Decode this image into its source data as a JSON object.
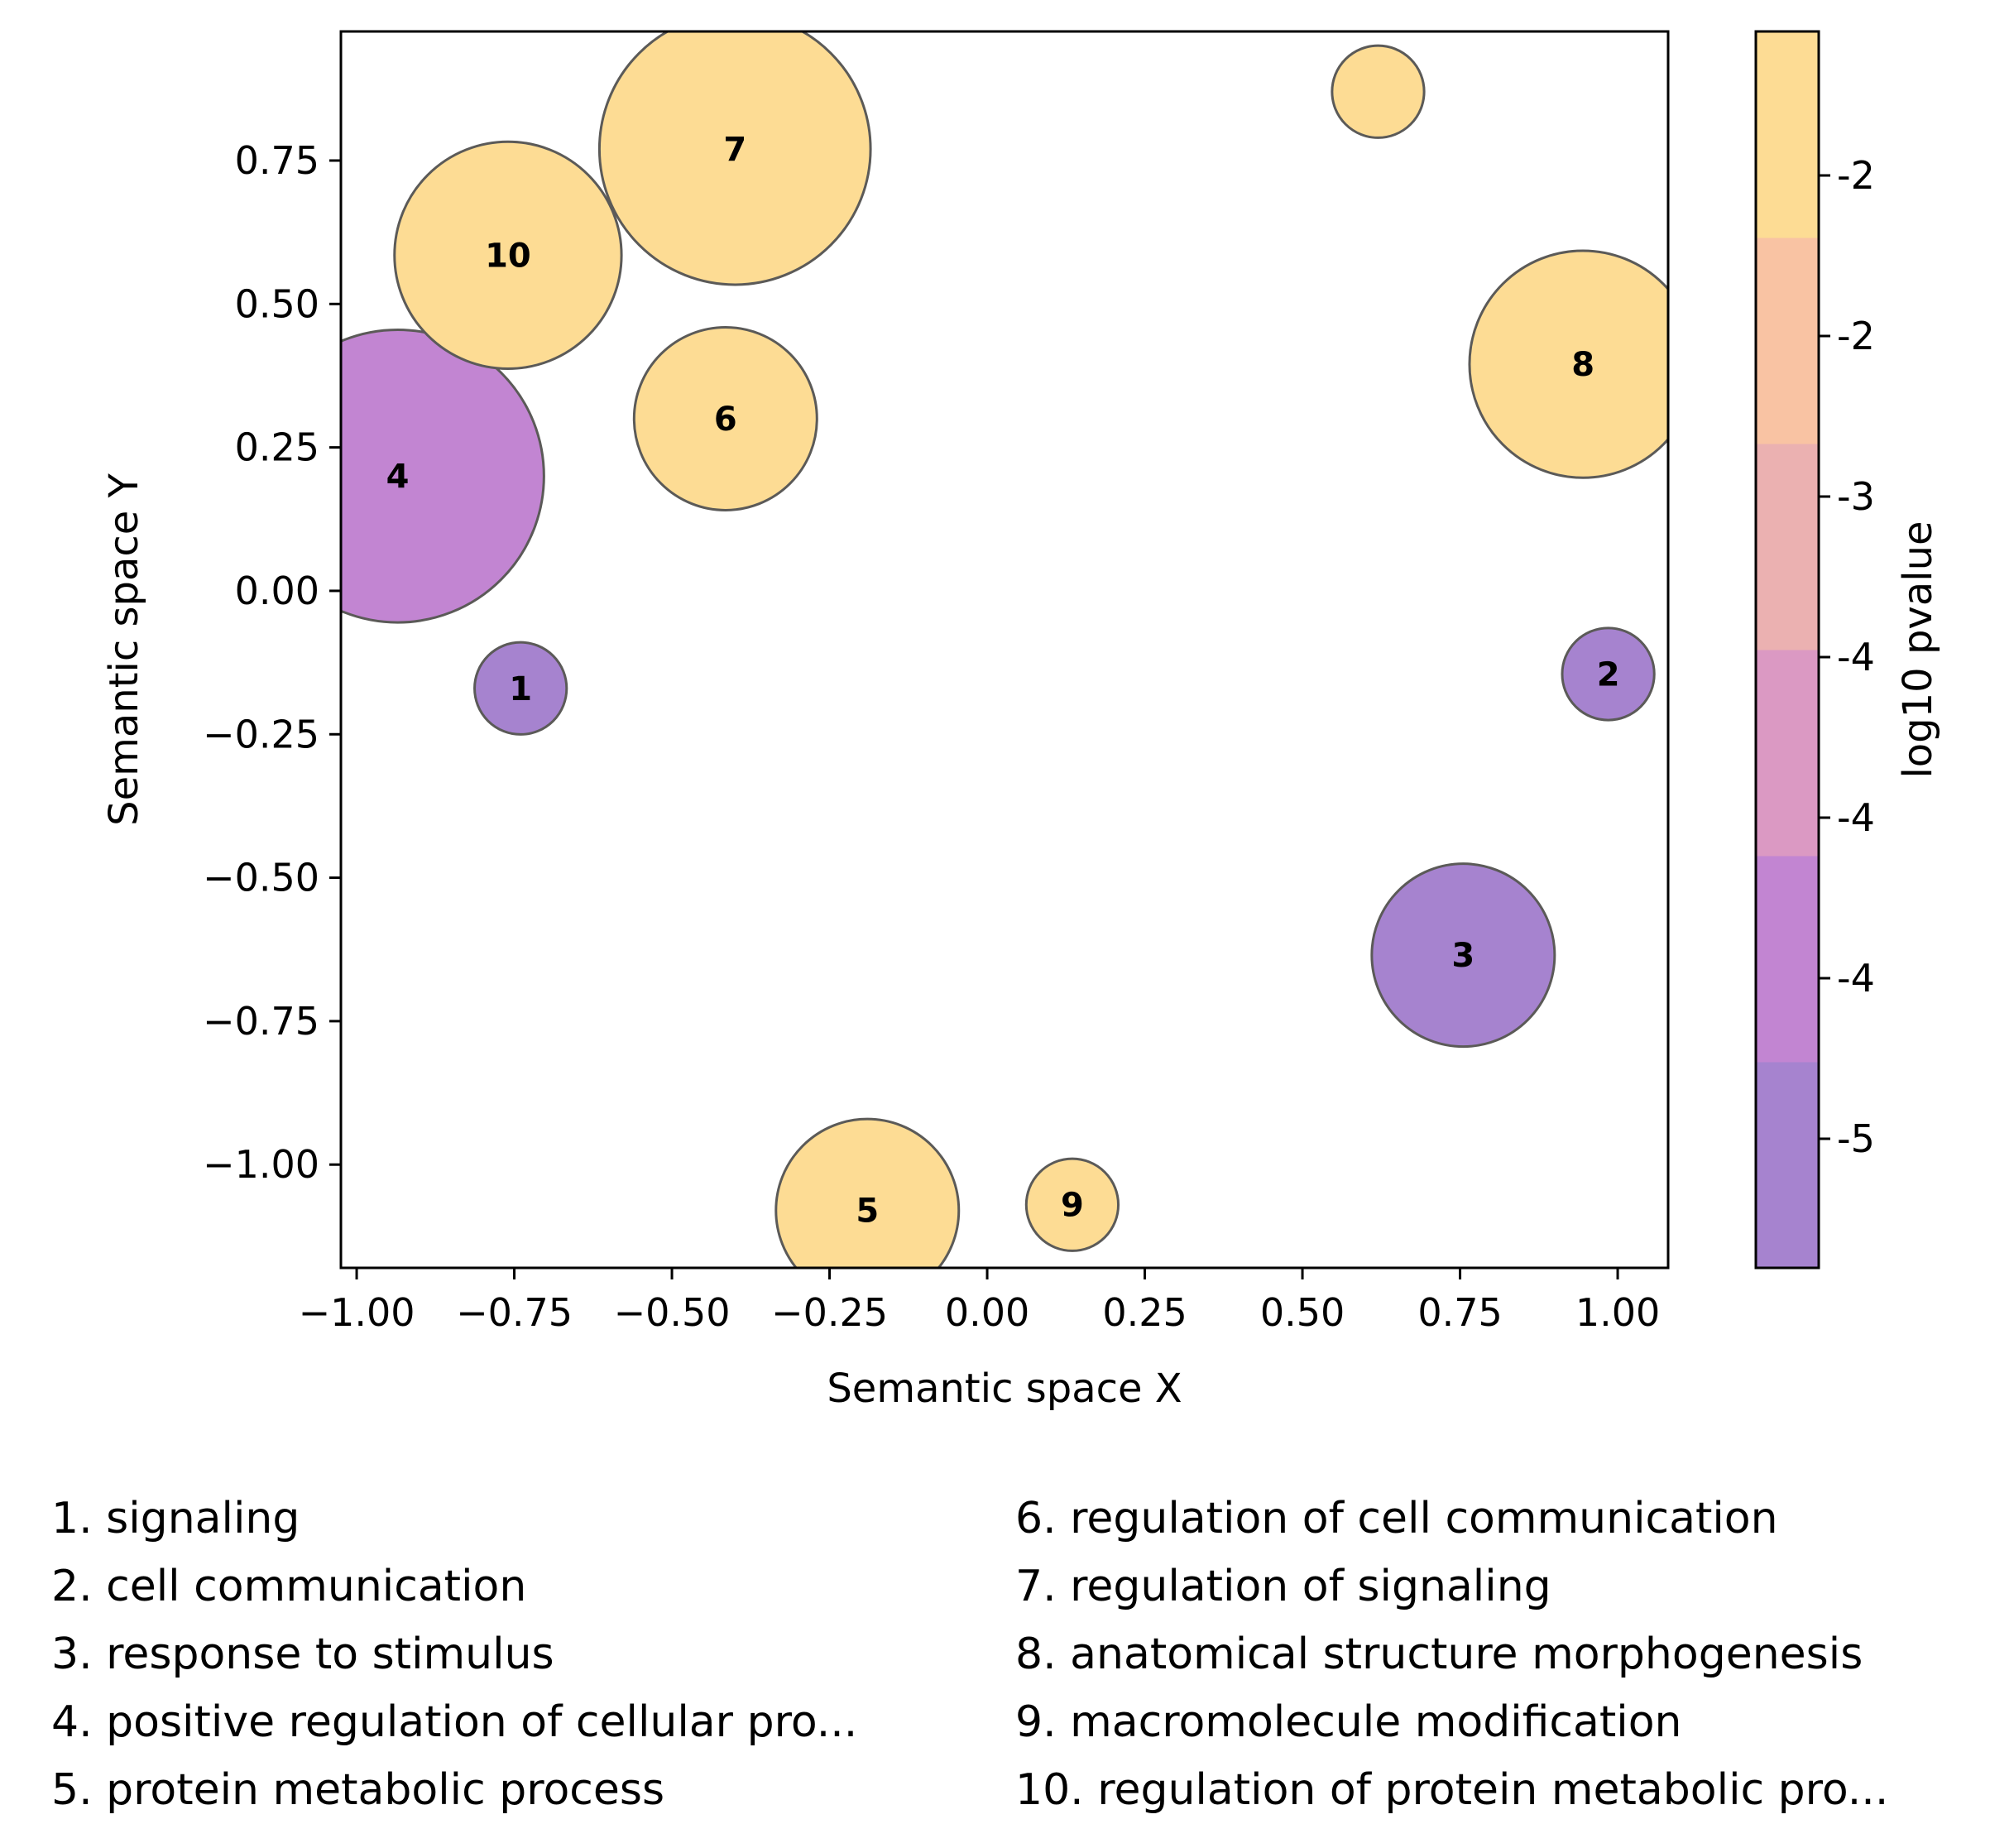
{
  "chart_data": {
    "type": "scatter",
    "xlabel": "Semantic space X",
    "ylabel": "Semantic space Y",
    "xlim": [
      -1.025,
      1.08
    ],
    "ylim": [
      -1.18,
      0.975
    ],
    "xticks": [
      -1.0,
      -0.75,
      -0.5,
      -0.25,
      0.0,
      0.25,
      0.5,
      0.75,
      1.0
    ],
    "xtick_labels": [
      "−1.00",
      "−0.75",
      "−0.50",
      "−0.25",
      "0.00",
      "0.25",
      "0.50",
      "0.75",
      "1.00"
    ],
    "yticks": [
      0.75,
      0.5,
      0.25,
      0.0,
      -0.25,
      -0.5,
      -0.75,
      -1.0
    ],
    "ytick_labels": [
      "0.75",
      "0.50",
      "0.25",
      "0.00",
      "−0.25",
      "−0.50",
      "−0.75",
      "−1.00"
    ],
    "grid": false,
    "points": [
      {
        "id": "1",
        "x": -0.74,
        "y": -0.17,
        "r": 0.073,
        "log10_pvalue": -5.4,
        "color": "#a683cf"
      },
      {
        "id": "2",
        "x": 0.985,
        "y": -0.145,
        "r": 0.073,
        "log10_pvalue": -5.4,
        "color": "#a683cf"
      },
      {
        "id": "3",
        "x": 0.755,
        "y": -0.635,
        "r": 0.145,
        "log10_pvalue": -5.2,
        "color": "#a683cf"
      },
      {
        "id": "4",
        "x": -0.935,
        "y": 0.2,
        "r": 0.232,
        "log10_pvalue": -4.2,
        "color": "#c285d2"
      },
      {
        "id": "5",
        "x": -0.19,
        "y": -1.08,
        "r": 0.145,
        "log10_pvalue": -1.8,
        "color": "#fddc94"
      },
      {
        "id": "6",
        "x": -0.415,
        "y": 0.3,
        "r": 0.145,
        "log10_pvalue": -1.8,
        "color": "#fddc94"
      },
      {
        "id": "7",
        "x": -0.4,
        "y": 0.77,
        "r": 0.215,
        "log10_pvalue": -1.8,
        "color": "#fddc94"
      },
      {
        "id": "8",
        "x": 0.945,
        "y": 0.395,
        "r": 0.18,
        "log10_pvalue": -1.8,
        "color": "#fddc94"
      },
      {
        "id": "9",
        "x": 0.135,
        "y": -1.07,
        "r": 0.073,
        "log10_pvalue": -1.8,
        "color": "#fddc94"
      },
      {
        "id": "10",
        "x": -0.76,
        "y": 0.585,
        "r": 0.18,
        "log10_pvalue": -1.8,
        "color": "#fddc94"
      },
      {
        "id": "",
        "x": 0.62,
        "y": 0.87,
        "r": 0.073,
        "log10_pvalue": -1.8,
        "color": "#fddc94"
      }
    ],
    "colorbar": {
      "label": "log10 pvalue",
      "bands_bottom_to_top": [
        "#a683cf",
        "#c285d2",
        "#db99c3",
        "#ebb1b1",
        "#f9c3a3",
        "#fddc94"
      ],
      "tick_labels_top_to_bottom": [
        "-2",
        "-2",
        "-3",
        "-4",
        "-4",
        "-4",
        "-5"
      ]
    },
    "legend": [
      "1. signaling",
      "2. cell communication",
      "3. response to stimulus",
      "4. positive regulation of cellular pro...",
      "5. protein metabolic process",
      "6. regulation of cell communication",
      "7. regulation of signaling",
      "8. anatomical structure morphogenesis",
      "9. macromolecule modification",
      "10. regulation of protein metabolic pro..."
    ]
  }
}
